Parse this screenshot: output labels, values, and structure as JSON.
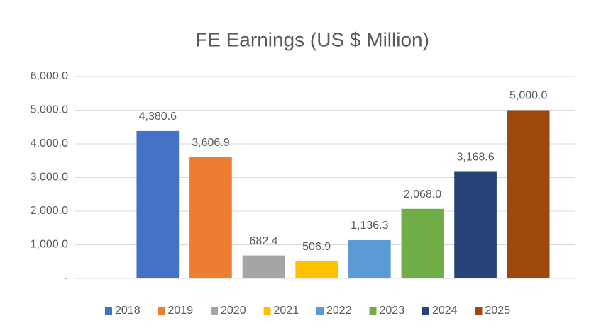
{
  "chart_data": {
    "type": "bar",
    "title": "FE Earnings (US $ Million)",
    "categories": [
      "2018",
      "2019",
      "2020",
      "2021",
      "2022",
      "2023",
      "2024",
      "2025"
    ],
    "values": [
      4380.6,
      3606.9,
      682.4,
      506.9,
      1136.3,
      2068.0,
      3168.6,
      5000.0
    ],
    "value_labels": [
      "4,380.6",
      "3,606.9",
      "682.4",
      "506.9",
      "1,136.3",
      "2,068.0",
      "3,168.6",
      "5,000.0"
    ],
    "colors": [
      "#4472c4",
      "#ed7d31",
      "#a5a5a5",
      "#ffc000",
      "#5b9bd5",
      "#70ad47",
      "#264478",
      "#9e480e"
    ],
    "ylim": [
      0,
      6000
    ],
    "yticks": [
      {
        "value": 0,
        "label": "-"
      },
      {
        "value": 1000,
        "label": "1,000.0"
      },
      {
        "value": 2000,
        "label": "2,000.0"
      },
      {
        "value": 3000,
        "label": "3,000.0"
      },
      {
        "value": 4000,
        "label": "4,000.0"
      },
      {
        "value": 5000,
        "label": "5,000.0"
      },
      {
        "value": 6000,
        "label": "6,000.0"
      }
    ],
    "grid": true,
    "legend": "bottom"
  }
}
